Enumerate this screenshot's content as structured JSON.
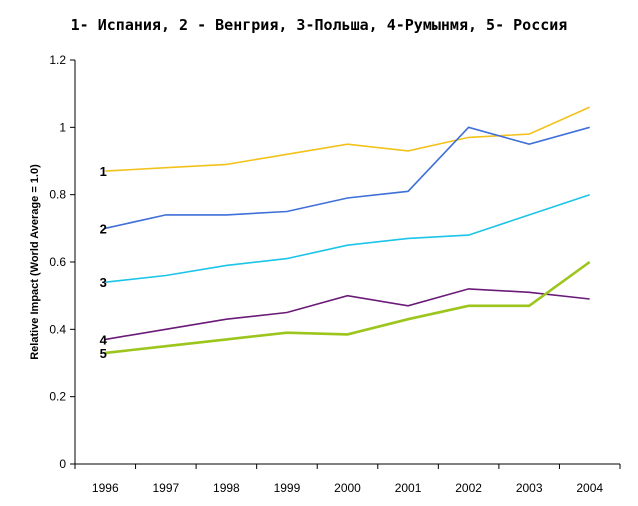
{
  "chart_data": {
    "type": "line",
    "title": "1- Испания, 2 - Венгрия, 3-Польша, 4-Румынмя, 5- Россия",
    "ylabel": "Relative Impact (World Average = 1.0)",
    "xlabel": "",
    "ylim": [
      0,
      1.2
    ],
    "yticks": [
      "0",
      "0.2",
      "0.4",
      "0.6",
      "0.8",
      "1",
      "1.2"
    ],
    "categories": [
      "1996",
      "1997",
      "1998",
      "1999",
      "2000",
      "2001",
      "2002",
      "2003",
      "2004"
    ],
    "grid": false,
    "legend": "none",
    "series": [
      {
        "name": "1",
        "color": "#F2C21B",
        "width": 1.6,
        "values": [
          0.87,
          0.88,
          0.89,
          0.92,
          0.95,
          0.93,
          0.97,
          0.98,
          1.06
        ]
      },
      {
        "name": "2",
        "color": "#3F6FD8",
        "width": 1.6,
        "values": [
          0.7,
          0.74,
          0.74,
          0.75,
          0.79,
          0.81,
          1.0,
          0.95,
          1.0
        ]
      },
      {
        "name": "3",
        "color": "#1BC4E8",
        "width": 1.6,
        "values": [
          0.54,
          0.56,
          0.59,
          0.61,
          0.65,
          0.67,
          0.68,
          0.74,
          0.8
        ]
      },
      {
        "name": "4",
        "color": "#6A1B78",
        "width": 1.6,
        "values": [
          0.37,
          0.4,
          0.43,
          0.45,
          0.5,
          0.47,
          0.52,
          0.51,
          0.49
        ]
      },
      {
        "name": "5",
        "color": "#9CC51E",
        "width": 2.6,
        "values": [
          0.33,
          0.35,
          0.37,
          0.39,
          0.385,
          0.43,
          0.47,
          0.47,
          0.6
        ]
      }
    ]
  }
}
